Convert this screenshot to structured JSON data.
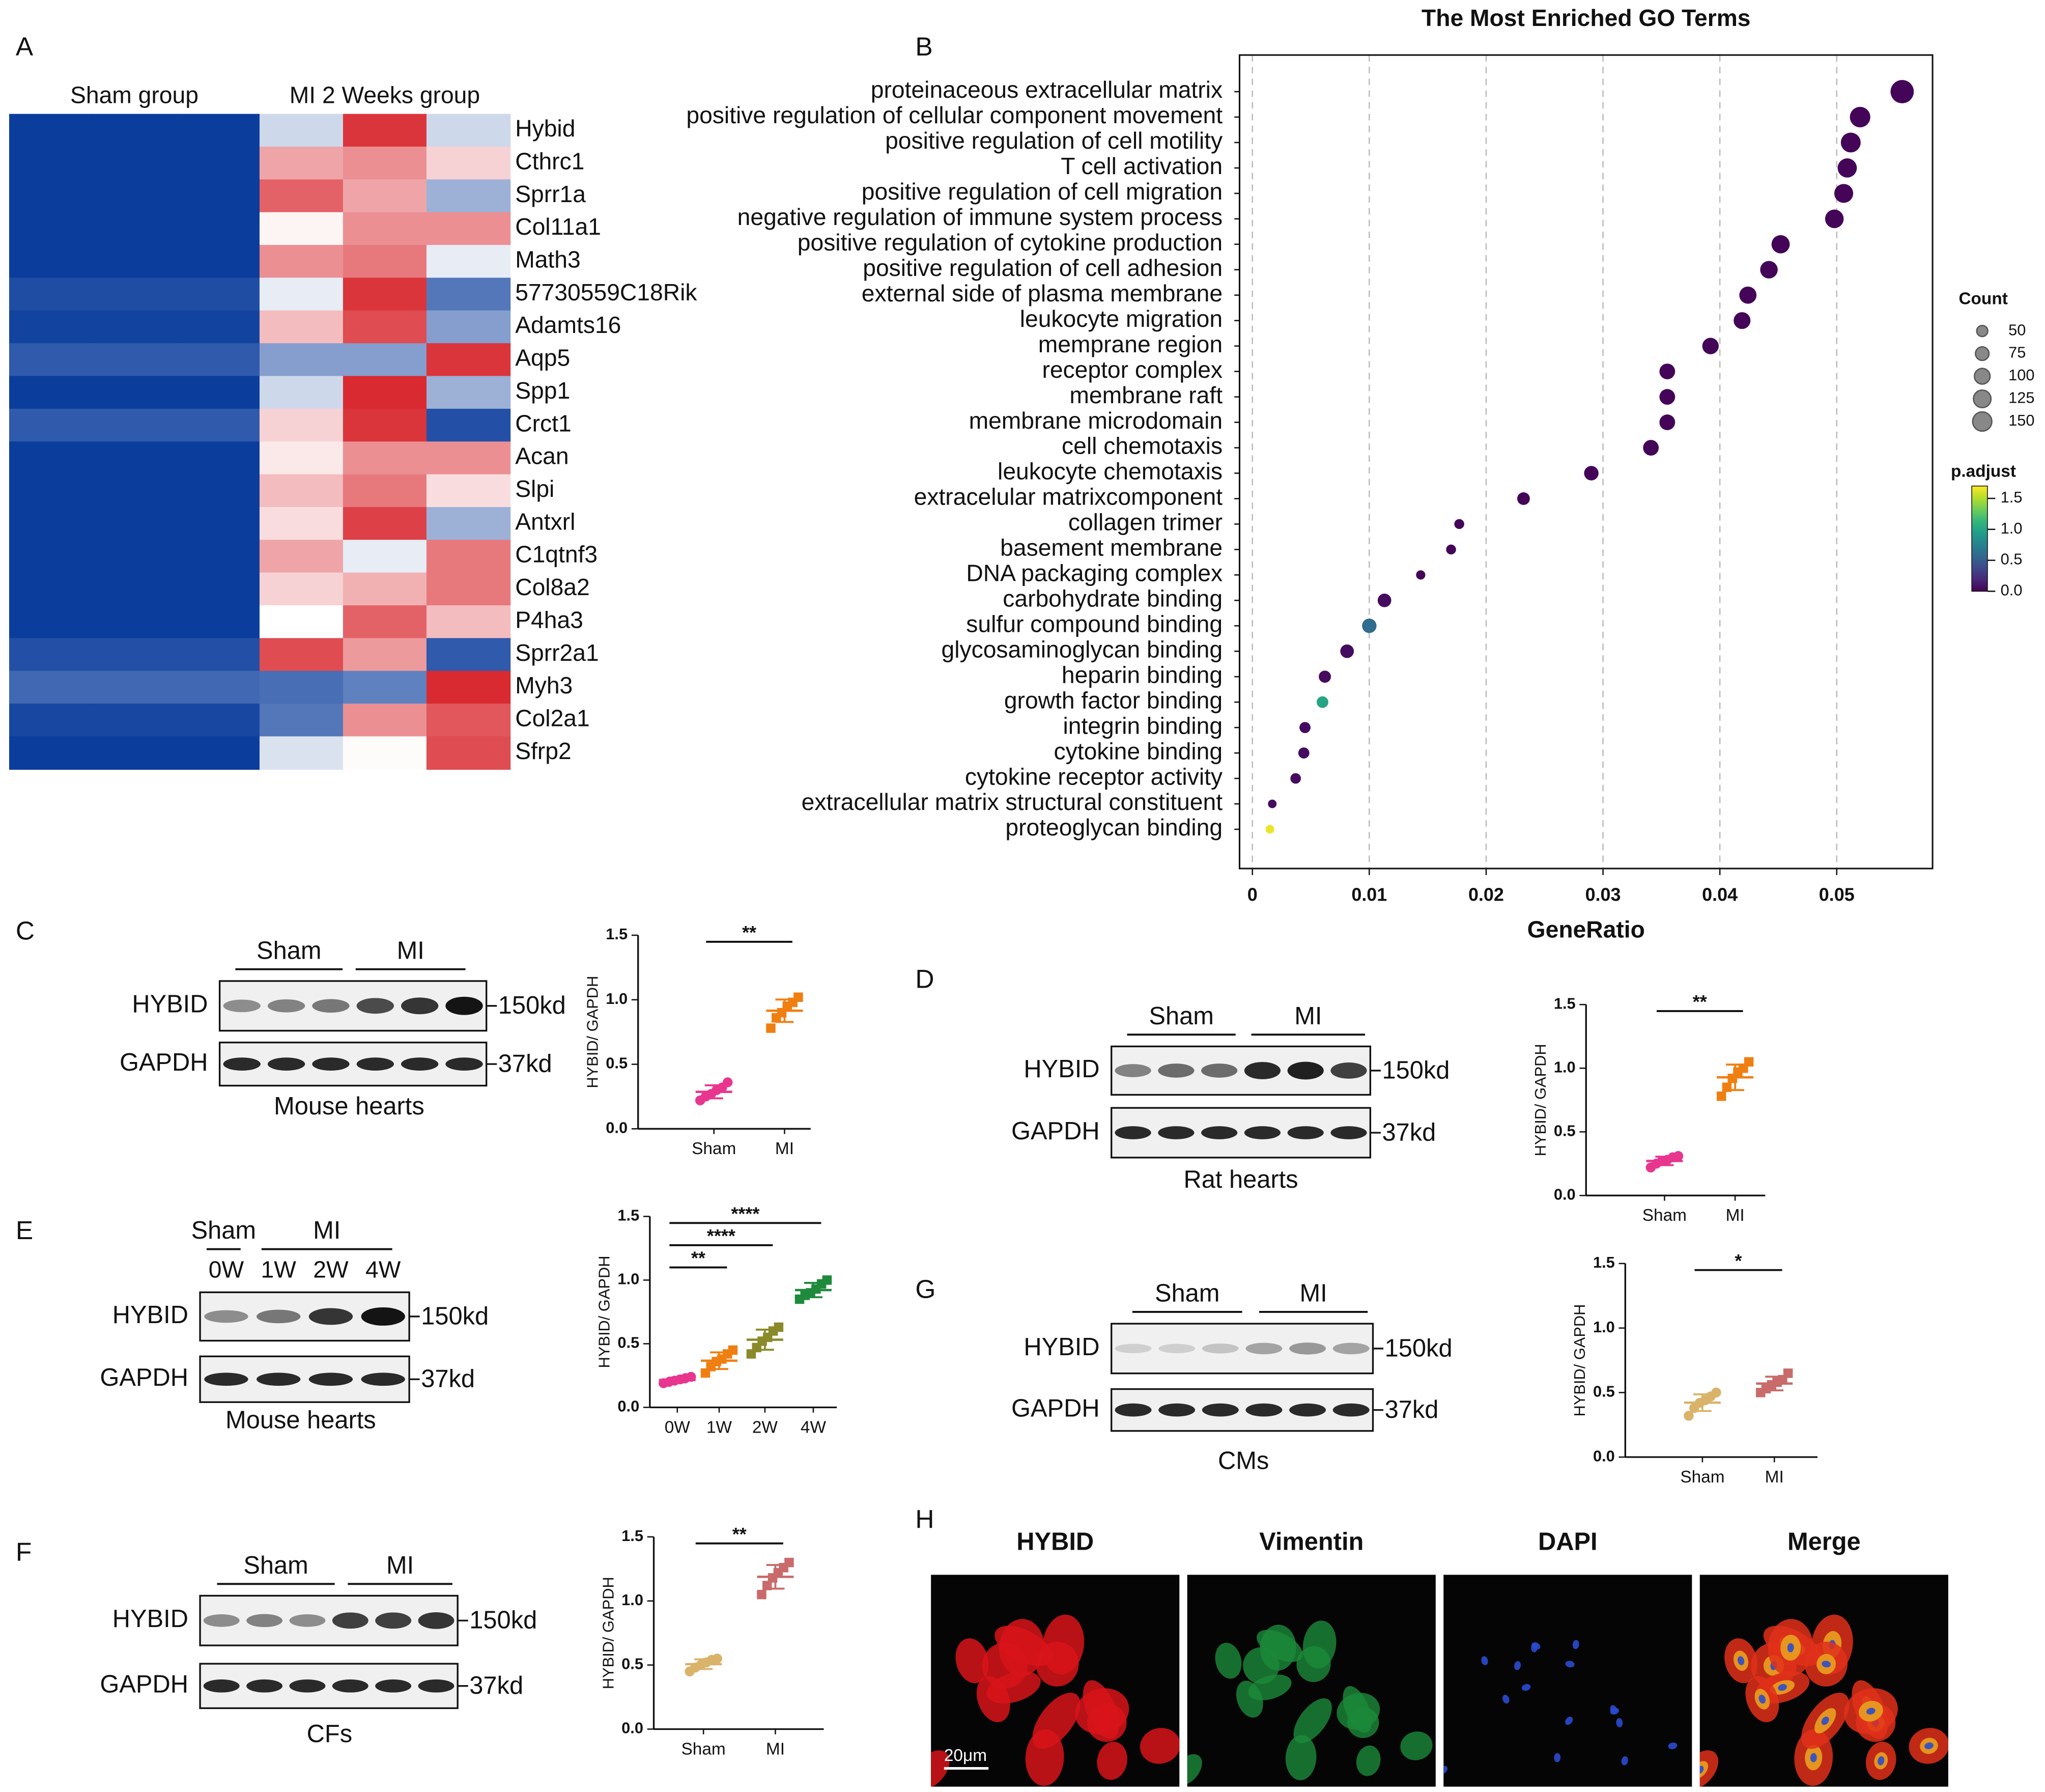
{
  "panel_labels": [
    "A",
    "B",
    "C",
    "D",
    "E",
    "F",
    "G",
    "H"
  ],
  "chart_data": [
    {
      "type": "heatmap",
      "column_groups": [
        "Sham group",
        "MI 2 Weeks group"
      ],
      "rows": [
        "Hybid",
        "Cthrc1",
        "Sprr1a",
        "Col11a1",
        "Math3",
        "57730559C18Rik",
        "Adamts16",
        "Aqp5",
        "Spp1",
        "Crct1",
        "Acan",
        "Slpi",
        "Antxrl",
        "C1qtnf3",
        "Col8a2",
        "P4ha3",
        "Sprr2a1",
        "Myh3",
        "Col2a1",
        "Sfrp2"
      ],
      "values": [
        [
          -1,
          -1,
          -1,
          -0.2,
          0.9,
          -0.2
        ],
        [
          -1,
          -1,
          -1,
          0.4,
          0.5,
          0.2
        ],
        [
          -1,
          -1,
          -1,
          0.7,
          0.4,
          -0.4
        ],
        [
          -1,
          -1,
          -1,
          0.05,
          0.5,
          0.5
        ],
        [
          -1,
          -1,
          -1,
          0.5,
          0.6,
          -0.1
        ],
        [
          -0.92,
          -0.92,
          -0.92,
          -0.1,
          0.9,
          -0.7
        ],
        [
          -0.97,
          -0.97,
          -0.97,
          0.3,
          0.8,
          -0.5
        ],
        [
          -0.85,
          -0.85,
          -0.85,
          -0.5,
          -0.5,
          0.9
        ],
        [
          -1,
          -1,
          -1,
          -0.2,
          0.95,
          -0.4
        ],
        [
          -0.85,
          -0.85,
          -0.85,
          0.2,
          0.9,
          -0.9
        ],
        [
          -1,
          -1,
          -1,
          0.1,
          0.5,
          0.5
        ],
        [
          -1,
          -1,
          -1,
          0.3,
          0.6,
          0.15
        ],
        [
          -1,
          -1,
          -1,
          0.15,
          0.85,
          -0.4
        ],
        [
          -1,
          -1,
          -1,
          0.4,
          -0.1,
          0.6
        ],
        [
          -1,
          -1,
          -1,
          0.2,
          0.35,
          0.6
        ],
        [
          -1,
          -1,
          -1,
          0.0,
          0.7,
          0.3
        ],
        [
          -0.9,
          -0.9,
          -0.9,
          0.8,
          0.45,
          -0.85
        ],
        [
          -0.78,
          -0.78,
          -0.78,
          -0.75,
          -0.65,
          0.95
        ],
        [
          -0.95,
          -0.95,
          -0.95,
          -0.7,
          0.5,
          0.75
        ],
        [
          -1,
          -1,
          -1,
          -0.15,
          0.02,
          0.8
        ]
      ],
      "zlim": [
        -1,
        1
      ],
      "colors": [
        "#0b3d9c",
        "#ffffff",
        "#d71f26"
      ]
    },
    {
      "type": "dot",
      "title": "The Most Enriched GO Terms",
      "xlabel": "GeneRatio",
      "categories": [
        "proteinaceous extracellular matrix",
        "positive regulation of cellular component movement",
        "positive regulation of cell motility",
        "T cell activation",
        "positive regulation of cell migration",
        "negative regulation of immune system process",
        "positive regulation of cytokine production",
        "positive regulation of cell adhesion",
        "external side of plasma membrane",
        "leukocyte migration",
        "memprane region",
        "receptor complex",
        "membrane raft",
        "membrane microdomain",
        "cell chemotaxis",
        "leukocyte chemotaxis",
        "extracelular matrixcomponent",
        "collagen trimer",
        "basement membrane",
        "DNA packaging complex",
        "carbohydrate binding",
        "sulfur compound binding",
        "glycosaminoglycan binding",
        "heparin binding",
        "growth factor binding",
        "integrin binding",
        "cytokine binding",
        "cytokine receptor activity",
        "extracellular matrix structural constituent",
        "proteoglycan binding"
      ],
      "x": [
        0.0556,
        0.052,
        0.0512,
        0.0509,
        0.0506,
        0.0498,
        0.0452,
        0.0442,
        0.0424,
        0.0419,
        0.0392,
        0.0355,
        0.0355,
        0.0355,
        0.0341,
        0.029,
        0.0232,
        0.0177,
        0.017,
        0.0144,
        0.0113,
        0.01,
        0.0081,
        0.0062,
        0.006,
        0.0045,
        0.0044,
        0.0037,
        0.0017,
        0.0015
      ],
      "sizes": [
        220,
        170,
        160,
        150,
        145,
        140,
        135,
        125,
        120,
        115,
        110,
        100,
        100,
        100,
        100,
        85,
        65,
        40,
        40,
        35,
        75,
        85,
        75,
        60,
        55,
        50,
        50,
        45,
        30,
        30
      ],
      "padj": [
        0.02,
        0.02,
        0.02,
        0.02,
        0.02,
        0.02,
        0.02,
        0.02,
        0.02,
        0.02,
        0.02,
        0.02,
        0.02,
        0.02,
        0.02,
        0.02,
        0.02,
        0.02,
        0.02,
        0.02,
        0.05,
        0.6,
        0.05,
        0.05,
        1.0,
        0.05,
        0.05,
        0.05,
        0.05,
        1.65
      ],
      "xlim": [
        -0.0011,
        0.0582
      ],
      "xticks": [
        0,
        0.01,
        0.02,
        0.03,
        0.04,
        0.05
      ],
      "grid": true,
      "size_legend": {
        "title": "Count",
        "values": [
          50,
          75,
          100,
          125,
          150
        ]
      },
      "color_legend": {
        "title": "p.adjust",
        "lim": [
          0,
          1.7
        ],
        "ticks": [
          {
            "value": 0,
            "label": "0.0"
          },
          {
            "value": 0.5,
            "label": "0.5"
          },
          {
            "value": 1,
            "label": "1.0"
          },
          {
            "value": 1.5,
            "label": "1.5"
          }
        ],
        "colors": [
          "#440154",
          "#482878",
          "#3e4989",
          "#31688e",
          "#26828e",
          "#1f9e89",
          "#35b779",
          "#6ece58",
          "#b5de2b",
          "#fde725"
        ]
      }
    },
    {
      "type": "strip",
      "ylabel": "HYBID/ GAPDH",
      "categories": [
        "Sham",
        "MI"
      ],
      "colors": [
        "#e8368f",
        "#f07f12"
      ],
      "values": [
        [
          0.22,
          0.25,
          0.27,
          0.3,
          0.32,
          0.36
        ],
        [
          0.78,
          0.86,
          0.9,
          0.95,
          0.98,
          1.02
        ]
      ],
      "ylim": [
        0,
        1.5
      ],
      "yticks": [
        {
          "value": 0,
          "label": "0.0"
        },
        {
          "value": 0.5,
          "label": "0.5"
        },
        {
          "value": 1,
          "label": "1.0"
        },
        {
          "value": 1.5,
          "label": "1.5"
        }
      ],
      "annotations": [
        {
          "text": "**",
          "from": 0,
          "to": 1
        }
      ]
    },
    {
      "type": "strip",
      "ylabel": "HYBID/ GAPDH",
      "categories": [
        "Sham",
        "MI"
      ],
      "colors": [
        "#e8368f",
        "#f07f12"
      ],
      "values": [
        [
          0.22,
          0.25,
          0.27,
          0.28,
          0.3,
          0.31
        ],
        [
          0.78,
          0.85,
          0.92,
          0.97,
          1.0,
          1.05
        ]
      ],
      "ylim": [
        0,
        1.5
      ],
      "yticks": [
        {
          "value": 0,
          "label": "0.0"
        },
        {
          "value": 0.5,
          "label": "0.5"
        },
        {
          "value": 1,
          "label": "1.0"
        },
        {
          "value": 1.5,
          "label": "1.5"
        }
      ],
      "annotations": [
        {
          "text": "**",
          "from": 0,
          "to": 1
        }
      ]
    },
    {
      "type": "strip",
      "ylabel": "HYBID/ GAPDH",
      "categories": [
        "0W",
        "1W",
        "2W",
        "4W"
      ],
      "colors": [
        "#e8368f",
        "#f07f12",
        "#8a8a2a",
        "#1e8a3c"
      ],
      "values": [
        [
          0.19,
          0.2,
          0.21,
          0.22,
          0.23,
          0.24
        ],
        [
          0.27,
          0.32,
          0.36,
          0.38,
          0.42,
          0.45
        ],
        [
          0.42,
          0.47,
          0.52,
          0.55,
          0.6,
          0.63
        ],
        [
          0.85,
          0.88,
          0.9,
          0.93,
          0.97,
          1.0
        ]
      ],
      "ylim": [
        0,
        1.5
      ],
      "yticks": [
        {
          "value": 0,
          "label": "0.0"
        },
        {
          "value": 0.5,
          "label": "0.5"
        },
        {
          "value": 1,
          "label": "1.0"
        },
        {
          "value": 1.5,
          "label": "1.5"
        }
      ],
      "annotations": [
        {
          "text": "**",
          "from": 0,
          "to": 1
        },
        {
          "text": "****",
          "from": 0,
          "to": 2
        },
        {
          "text": "****",
          "from": 0,
          "to": 3
        }
      ]
    },
    {
      "type": "strip",
      "ylabel": "HYBID/ GAPDH",
      "categories": [
        "Sham",
        "MI"
      ],
      "colors": [
        "#d9b36a",
        "#c96b6b"
      ],
      "values": [
        [
          0.32,
          0.38,
          0.42,
          0.44,
          0.47,
          0.5
        ],
        [
          0.5,
          0.53,
          0.56,
          0.58,
          0.6,
          0.65
        ]
      ],
      "ylim": [
        0,
        1.5
      ],
      "yticks": [
        {
          "value": 0,
          "label": "0.0"
        },
        {
          "value": 0.5,
          "label": "0.5"
        },
        {
          "value": 1,
          "label": "1.0"
        },
        {
          "value": 1.5,
          "label": "1.5"
        }
      ],
      "annotations": [
        {
          "text": "*",
          "from": 0,
          "to": 1
        }
      ]
    },
    {
      "type": "strip",
      "ylabel": "HYBID/ GAPDH",
      "categories": [
        "Sham",
        "MI"
      ],
      "colors": [
        "#d9b36a",
        "#c96b6b"
      ],
      "values": [
        [
          0.45,
          0.48,
          0.5,
          0.52,
          0.54,
          0.55
        ],
        [
          1.05,
          1.12,
          1.18,
          1.22,
          1.26,
          1.3
        ]
      ],
      "ylim": [
        0,
        1.5
      ],
      "yticks": [
        {
          "value": 0,
          "label": "0.0"
        },
        {
          "value": 0.5,
          "label": "0.5"
        },
        {
          "value": 1,
          "label": "1.0"
        },
        {
          "value": 1.5,
          "label": "1.5"
        }
      ],
      "annotations": [
        {
          "text": "**",
          "from": 0,
          "to": 1
        }
      ]
    }
  ],
  "blots": [
    {
      "groups": [
        "Sham",
        "MI"
      ],
      "rows": [
        {
          "protein": "HYBID",
          "size": "150kd"
        },
        {
          "protein": "GAPDH",
          "size": "37kd"
        }
      ],
      "caption": "Mouse hearts"
    },
    {
      "groups": [
        "Sham",
        "MI"
      ],
      "rows": [
        {
          "protein": "HYBID",
          "size": "150kd"
        },
        {
          "protein": "GAPDH",
          "size": "37kd"
        }
      ],
      "caption": "Rat hearts"
    },
    {
      "groups": [
        "Sham",
        "MI"
      ],
      "lanes": [
        "0W",
        "1W",
        "2W",
        "4W"
      ],
      "rows": [
        {
          "protein": "HYBID",
          "size": "150kd"
        },
        {
          "protein": "GAPDH",
          "size": "37kd"
        }
      ],
      "caption": "Mouse hearts"
    },
    {
      "groups": [
        "Sham",
        "MI"
      ],
      "rows": [
        {
          "protein": "HYBID",
          "size": "150kd"
        },
        {
          "protein": "GAPDH",
          "size": "37kd"
        }
      ],
      "caption": "CMs"
    },
    {
      "groups": [
        "Sham",
        "MI"
      ],
      "rows": [
        {
          "protein": "HYBID",
          "size": "150kd"
        },
        {
          "protein": "GAPDH",
          "size": "37kd"
        }
      ],
      "caption": "CFs"
    }
  ],
  "image_panel": {
    "channels": [
      "HYBID",
      "Vimentin",
      "DAPI",
      "Merge"
    ],
    "title_colors": [
      "#e8141b",
      "#1a9a3a",
      "#1f2f9a",
      "#f39a1c"
    ],
    "scale_bar": "20μm"
  }
}
